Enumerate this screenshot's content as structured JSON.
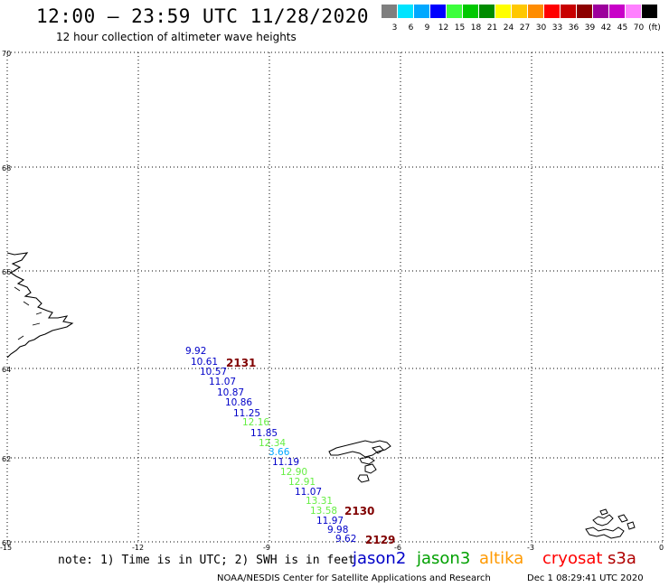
{
  "title": "12:00 – 23:59 UTC 11/28/2020",
  "subtitle": "12 hour collection of altimeter wave heights",
  "legend": {
    "unit": "(ft)",
    "items": [
      {
        "label": "3",
        "color": "#7f7f7f"
      },
      {
        "label": "6",
        "color": "#00e4ff"
      },
      {
        "label": "9",
        "color": "#00a8ff"
      },
      {
        "label": "12",
        "color": "#0000ff"
      },
      {
        "label": "15",
        "color": "#3cff3c"
      },
      {
        "label": "18",
        "color": "#00c800"
      },
      {
        "label": "21",
        "color": "#008c00"
      },
      {
        "label": "24",
        "color": "#ffff00"
      },
      {
        "label": "27",
        "color": "#ffc800"
      },
      {
        "label": "30",
        "color": "#ff8c00"
      },
      {
        "label": "33",
        "color": "#ff0000"
      },
      {
        "label": "36",
        "color": "#c80000"
      },
      {
        "label": "39",
        "color": "#8c0000"
      },
      {
        "label": "42",
        "color": "#9c009c"
      },
      {
        "label": "45",
        "color": "#c800c8"
      },
      {
        "label": "70",
        "color": "#ff80ff"
      },
      {
        "label": "",
        "color": "#000000"
      }
    ]
  },
  "map": {
    "lat_labels": [
      "70",
      "68",
      "66",
      "64",
      "62",
      "60"
    ],
    "lon_labels": [
      "-15",
      "-12",
      "-9",
      "-6",
      "-3",
      "0"
    ],
    "grid": "dotted"
  },
  "observations": [
    {
      "value": "9.92",
      "color": "#0000c8"
    },
    {
      "value": "10.61",
      "color": "#0000c8"
    },
    {
      "value": "10.57",
      "color": "#0000c8"
    },
    {
      "value": "11.07",
      "color": "#0000c8"
    },
    {
      "value": "10.87",
      "color": "#0000c8"
    },
    {
      "value": "10.86",
      "color": "#0000c8"
    },
    {
      "value": "11.25",
      "color": "#0000c8"
    },
    {
      "value": "12.16",
      "color": "#66ee44"
    },
    {
      "value": "11.85",
      "color": "#0000c8"
    },
    {
      "value": "12.34",
      "color": "#66ee44"
    },
    {
      "value": "3.66",
      "color": "#00a8ff"
    },
    {
      "value": "11.19",
      "color": "#0000c8"
    },
    {
      "value": "12.90",
      "color": "#66ee44"
    },
    {
      "value": "12.91",
      "color": "#66ee44"
    },
    {
      "value": "11.07",
      "color": "#0000c8"
    },
    {
      "value": "13.31",
      "color": "#66ee44"
    },
    {
      "value": "13.58",
      "color": "#66ee44"
    },
    {
      "value": "11.97",
      "color": "#0000c8"
    },
    {
      "value": "9.98",
      "color": "#0000c8"
    },
    {
      "value": "9.62",
      "color": "#0000c8"
    }
  ],
  "time_stamps": [
    "2131",
    "2130",
    "2129"
  ],
  "note": "note: 1) Time is in UTC; 2) SWH is in feet",
  "satellites": [
    {
      "name": "jason2",
      "color": "#0000c8"
    },
    {
      "name": "jason3",
      "color": "#00a000"
    },
    {
      "name": "altika",
      "color": "#ff9900"
    },
    {
      "name": "cryosat",
      "color": "#ff0000"
    },
    {
      "name": "s3a",
      "color": "#b00000"
    }
  ],
  "credit": "NOAA/NESDIS Center for Satellite Applications and Research",
  "timestamp": "Dec  1 08:29:41 UTC 2020"
}
